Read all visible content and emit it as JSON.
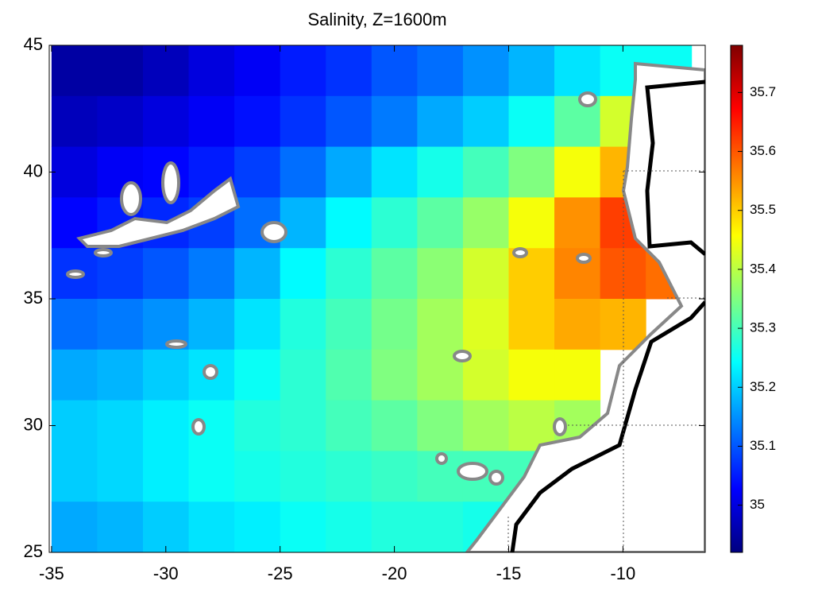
{
  "chart_data": {
    "type": "heatmap",
    "title": "Salinity, Z=1600m",
    "colormap": "jet",
    "x": [
      -34,
      -32,
      -30,
      -28,
      -26,
      -24,
      -22,
      -20,
      -18,
      -16,
      -14,
      -12,
      -10,
      -8
    ],
    "y": [
      44,
      42,
      40,
      38,
      36,
      34,
      32,
      30,
      28,
      26
    ],
    "z": [
      [
        34.95,
        34.95,
        34.97,
        35.0,
        35.02,
        35.05,
        35.07,
        35.1,
        35.12,
        35.15,
        35.18,
        35.22,
        35.25,
        35.25
      ],
      [
        34.97,
        34.98,
        35.0,
        35.02,
        35.04,
        35.07,
        35.1,
        35.13,
        35.17,
        35.2,
        35.25,
        35.32,
        35.42,
        null
      ],
      [
        35.0,
        35.02,
        35.03,
        35.05,
        35.08,
        35.12,
        35.17,
        35.22,
        35.26,
        35.3,
        35.35,
        35.45,
        35.52,
        null
      ],
      [
        35.03,
        35.05,
        35.06,
        35.08,
        35.12,
        35.18,
        35.24,
        35.28,
        35.32,
        35.37,
        35.45,
        35.55,
        35.62,
        null
      ],
      [
        35.07,
        35.08,
        35.1,
        35.13,
        35.18,
        35.24,
        35.28,
        35.32,
        35.36,
        35.42,
        35.5,
        35.56,
        35.6,
        35.58
      ],
      [
        35.12,
        35.13,
        35.15,
        35.18,
        35.22,
        35.27,
        35.3,
        35.34,
        35.38,
        35.43,
        35.5,
        35.53,
        35.52,
        null
      ],
      [
        35.17,
        35.18,
        35.2,
        35.22,
        35.25,
        35.28,
        35.31,
        35.35,
        35.38,
        35.42,
        35.45,
        35.45,
        null,
        null
      ],
      [
        35.2,
        35.21,
        35.23,
        35.25,
        35.27,
        35.28,
        35.3,
        35.32,
        35.35,
        35.38,
        35.4,
        35.38,
        null,
        null
      ],
      [
        35.2,
        35.21,
        35.23,
        35.25,
        35.26,
        35.27,
        35.28,
        35.29,
        35.3,
        35.3,
        35.3,
        null,
        null,
        null
      ],
      [
        35.17,
        35.18,
        35.2,
        35.22,
        35.23,
        35.25,
        35.26,
        35.27,
        35.27,
        35.26,
        null,
        null,
        null,
        null
      ]
    ],
    "xlim": [
      -35.1,
      -6.4
    ],
    "ylim": [
      25,
      45
    ],
    "xticks": [
      -35,
      -30,
      -25,
      -20,
      -15,
      -10
    ],
    "yticks": [
      25,
      30,
      35,
      40,
      45
    ],
    "colorbar": {
      "clim": [
        34.92,
        35.78
      ],
      "ticks": [
        35,
        35.1,
        35.2,
        35.3,
        35.4,
        35.5,
        35.6,
        35.7
      ]
    }
  }
}
